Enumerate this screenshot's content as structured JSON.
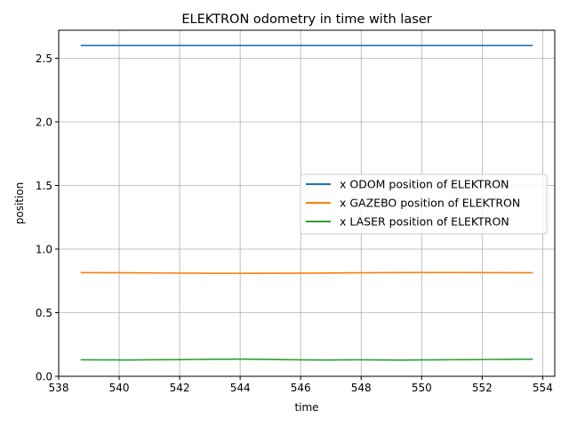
{
  "chart_data": {
    "type": "line",
    "title": "ELEKTRON odometry in time with laser",
    "xlabel": "time",
    "ylabel": "position",
    "xlim": [
      538,
      554.4
    ],
    "ylim": [
      0.0,
      2.72
    ],
    "xticks": [
      538,
      540,
      542,
      544,
      546,
      548,
      550,
      552,
      554
    ],
    "xtick_labels": [
      "538",
      "540",
      "542",
      "544",
      "546",
      "548",
      "550",
      "552",
      "554"
    ],
    "yticks": [
      0.0,
      0.5,
      1.0,
      1.5,
      2.0,
      2.5
    ],
    "ytick_labels": [
      "0.0",
      "0.5",
      "1.0",
      "1.5",
      "2.0",
      "2.5"
    ],
    "grid": true,
    "legend_position": "center-right",
    "series": [
      {
        "name": "x ODOM position of ELEKTRON",
        "color": "#1f77b4",
        "x": [
          538.75,
          541,
          543,
          545,
          547,
          549,
          551,
          553,
          553.65
        ],
        "y": [
          2.6,
          2.6,
          2.6,
          2.6,
          2.6,
          2.6,
          2.6,
          2.6,
          2.6
        ]
      },
      {
        "name": "x GAZEBO position of ELEKTRON",
        "color": "#ff7f0e",
        "x": [
          538.75,
          540,
          541.5,
          543,
          544.5,
          546,
          547.5,
          549,
          550.5,
          552,
          553.65
        ],
        "y": [
          0.815,
          0.814,
          0.812,
          0.81,
          0.81,
          0.811,
          0.813,
          0.815,
          0.816,
          0.815,
          0.814
        ]
      },
      {
        "name": "x LASER position of ELEKTRON",
        "color": "#2ca02c",
        "x": [
          538.75,
          539.5,
          540.3,
          541,
          541.8,
          542.5,
          543.2,
          544,
          544.7,
          545.5,
          546.2,
          547,
          547.8,
          548.5,
          549.3,
          550,
          550.8,
          551.5,
          552.3,
          553,
          553.65
        ],
        "y": [
          0.13,
          0.129,
          0.128,
          0.13,
          0.131,
          0.132,
          0.134,
          0.135,
          0.133,
          0.131,
          0.129,
          0.128,
          0.13,
          0.129,
          0.127,
          0.129,
          0.13,
          0.131,
          0.132,
          0.133,
          0.134
        ]
      }
    ]
  }
}
